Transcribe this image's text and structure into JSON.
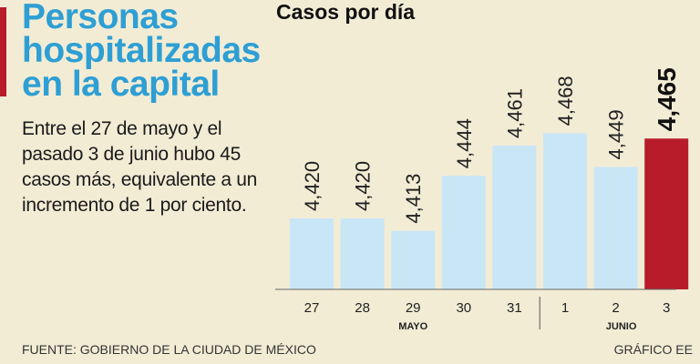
{
  "headline": {
    "lines": [
      "Personas",
      "hospitalizadas",
      "en la capital"
    ]
  },
  "summary": "Entre el 27 de mayo y el pasado 3 de junio hubo 45 casos más, equivalente a un incremento de 1 por ciento.",
  "footer": {
    "source": "FUENTE: GOBIERNO DE LA CIUDAD DE MÉXICO",
    "credit": "GRÁFICO EE"
  },
  "colors": {
    "background": "#f2ecd5",
    "bar": "#c9e6f7",
    "highlight": "#b81c2a",
    "title": "#2e9fd4"
  },
  "chart_data": {
    "type": "bar",
    "title": "Casos por día",
    "categories": [
      "27",
      "28",
      "29",
      "30",
      "31",
      "1",
      "2",
      "3"
    ],
    "values": [
      4420,
      4420,
      4413,
      4444,
      4461,
      4468,
      4449,
      4465
    ],
    "value_labels": [
      "4,420",
      "4,420",
      "4,413",
      "4,444",
      "4,461",
      "4,468",
      "4,449",
      "4,465"
    ],
    "highlight_index": 7,
    "months": [
      {
        "label": "MAYO",
        "from": 0,
        "to": 4
      },
      {
        "label": "JUNIO",
        "from": 5,
        "to": 7
      }
    ],
    "ylim": [
      4380,
      4480
    ],
    "xlabel": "",
    "ylabel": "",
    "grid": false
  }
}
